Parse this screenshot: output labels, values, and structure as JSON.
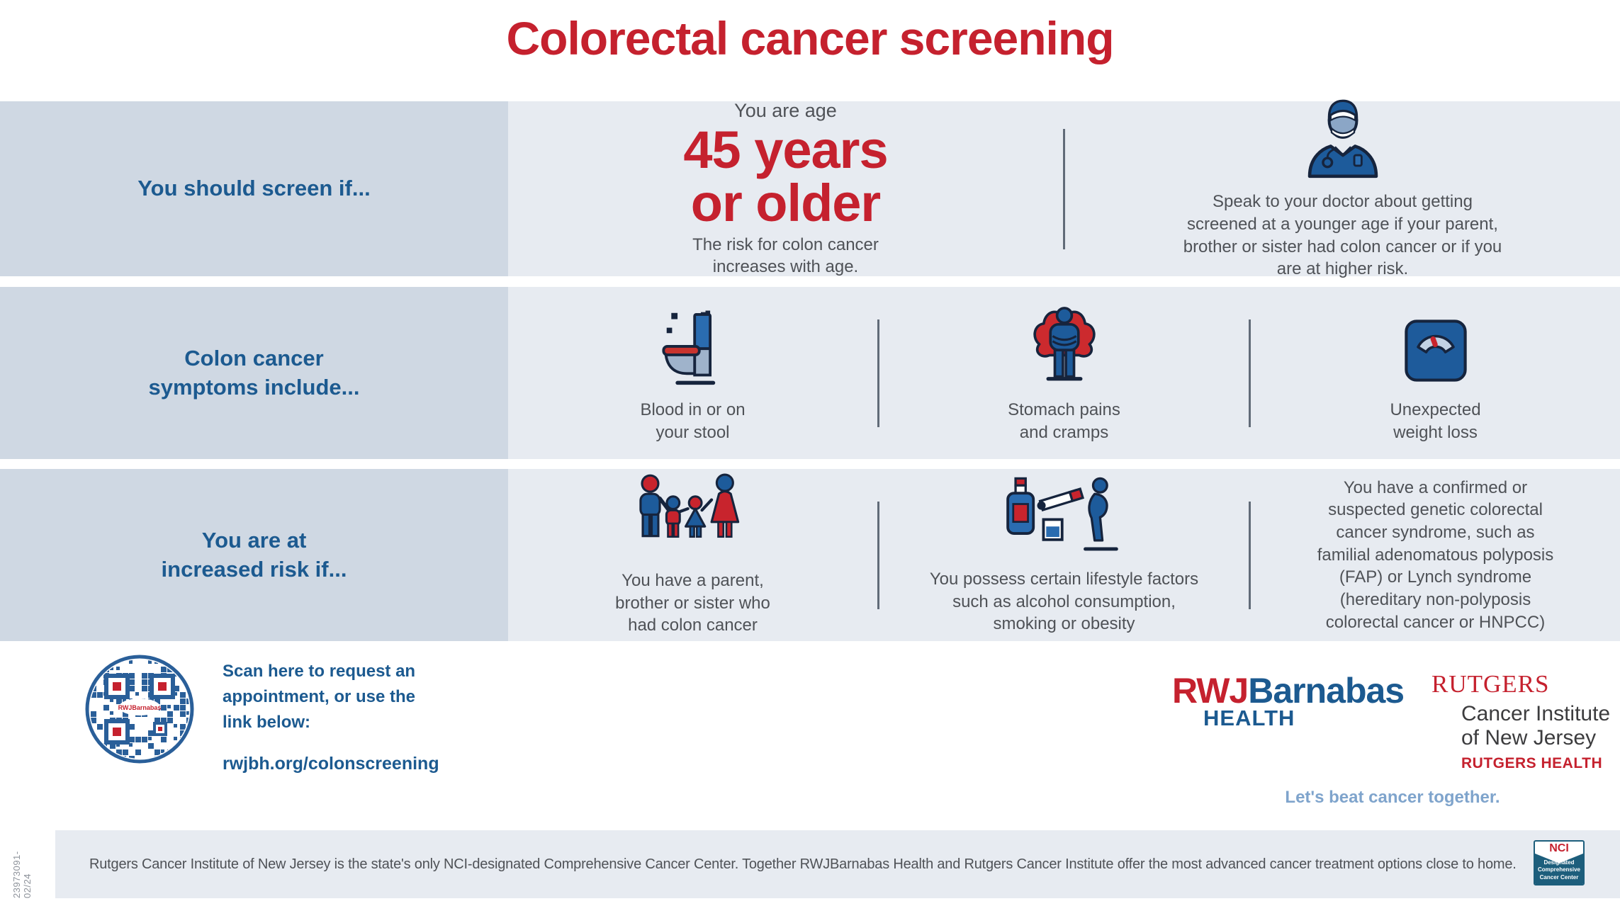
{
  "title": "Colorectal cancer screening",
  "screen_row": {
    "label": "You should screen if...",
    "age_pre": "You are age",
    "age_big_1": "45 years",
    "age_big_2": "or older",
    "age_note": "The risk for colon cancer\nincreases with age.",
    "doctor_text": "Speak to your doctor about getting\nscreened at a younger age if your parent,\nbrother or sister had colon cancer or if you\nare at higher risk."
  },
  "symptoms_row": {
    "label": "Colon cancer\nsymptoms include...",
    "items": [
      {
        "icon": "toilet-icon",
        "text": "Blood in or on\nyour stool"
      },
      {
        "icon": "stomach-pain-icon",
        "text": "Stomach pains\nand cramps"
      },
      {
        "icon": "weight-scale-icon",
        "text": "Unexpected\nweight loss"
      }
    ]
  },
  "risk_row": {
    "label": "You are at\nincreased risk if...",
    "items": [
      {
        "icon": "family-icon",
        "text": "You have a parent,\nbrother or sister who\nhad colon cancer"
      },
      {
        "icon": "lifestyle-icon",
        "text": "You possess certain lifestyle factors\nsuch as alcohol consumption,\nsmoking or obesity"
      },
      {
        "icon": "",
        "text": "You have a confirmed or\nsuspected genetic colorectal\ncancer syndrome, such as\nfamilial adenomatous polyposis\n(FAP) or Lynch syndrome\n(hereditary non-polyposis\ncolorectal cancer or HNPCC)"
      }
    ]
  },
  "appointment": {
    "text": "Scan here to request an\nappointment, or use the\nlink below:",
    "link": "rwjbh.org/colonscreening",
    "qr_center_text": "RWJBarnabas"
  },
  "branding": {
    "rwj_red": "RWJ",
    "rwj_rest": "Barnabas",
    "rwj_health": "HEALTH",
    "rutgers_wordmark": "RUTGERS",
    "cancer_institute": "Cancer Institute\nof New Jersey",
    "rutgers_health": "RUTGERS HEALTH",
    "tagline": "Let's beat cancer together."
  },
  "footer": {
    "text": "Rutgers Cancer Institute of New Jersey is the state's only NCI-designated Comprehensive Cancer Center. Together RWJBarnabas Health and Rutgers Cancer Institute offer the most advanced cancer treatment options close to home.",
    "nci_title": "NCI",
    "nci_subtitle": "Designated\nComprehensive\nCancer Center",
    "code": "23973091-02/24"
  },
  "colors": {
    "red": "#c5212e",
    "headline_blue": "#1c5a90",
    "icon_navy": "#1d5b9b",
    "icon_mid_blue": "#2a6cb0",
    "left_panel_bg": "#cfd8e3",
    "row_bg": "#e7ebf1",
    "text_gray": "#4f5257",
    "tagline_blue": "#7fa4cc",
    "nci_teal": "#1d5e7c"
  }
}
